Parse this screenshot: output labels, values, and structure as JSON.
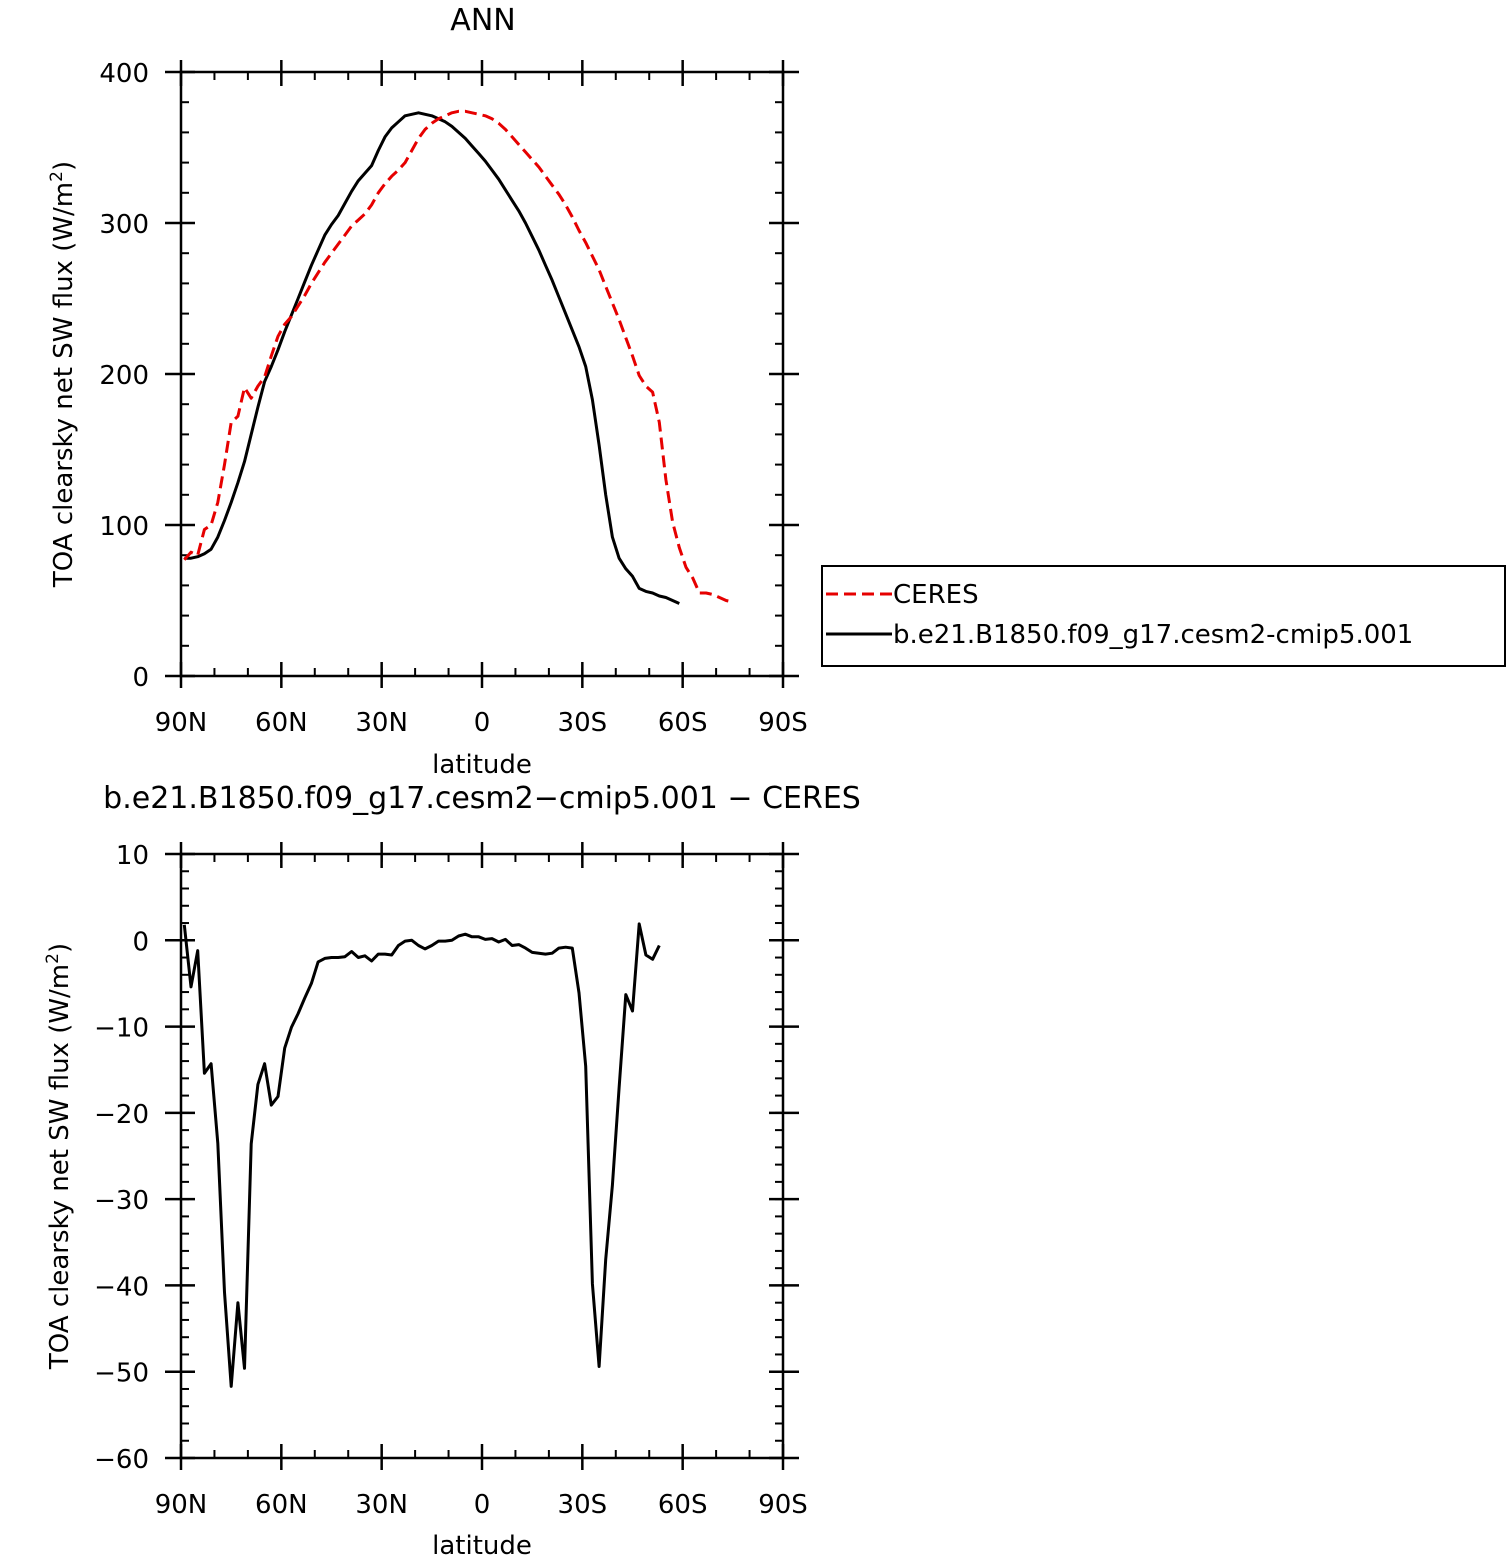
{
  "chart_data": [
    {
      "type": "line",
      "title": "ANN",
      "xlabel": "latitude",
      "ylabel": "TOA clearsky net SW flux (W/m",
      "ylabel_sup": "2",
      "ylabel_close": ")",
      "xlim": [
        90,
        -90
      ],
      "ylim": [
        0,
        400
      ],
      "x_ticks": [
        {
          "value": 90,
          "label": "90N"
        },
        {
          "value": 60,
          "label": "60N"
        },
        {
          "value": 30,
          "label": "30N"
        },
        {
          "value": 0,
          "label": "0"
        },
        {
          "value": -30,
          "label": "30S"
        },
        {
          "value": -60,
          "label": "60S"
        },
        {
          "value": -90,
          "label": "90S"
        }
      ],
      "y_ticks": [
        0,
        100,
        200,
        300,
        400
      ],
      "legend_position": "right",
      "series": [
        {
          "name": "CERES",
          "color": "#e60000",
          "dash": "dashed",
          "points": [
            [
              89,
              77
            ],
            [
              87,
              82
            ],
            [
              85,
              80
            ],
            [
              83,
              97
            ],
            [
              81,
              100
            ],
            [
              79,
              115
            ],
            [
              77,
              140
            ],
            [
              75,
              168
            ],
            [
              73,
              172
            ],
            [
              71,
              191
            ],
            [
              69,
              184
            ],
            [
              67,
              192
            ],
            [
              65,
              198
            ],
            [
              63,
              212
            ],
            [
              61,
              225
            ],
            [
              59,
              233
            ],
            [
              57,
              238
            ],
            [
              55,
              245
            ],
            [
              53,
              252
            ],
            [
              51,
              260
            ],
            [
              49,
              267
            ],
            [
              47,
              274
            ],
            [
              45,
              280
            ],
            [
              43,
              286
            ],
            [
              41,
              292
            ],
            [
              39,
              298
            ],
            [
              37,
              302
            ],
            [
              35,
              306
            ],
            [
              33,
              312
            ],
            [
              31,
              320
            ],
            [
              29,
              326
            ],
            [
              27,
              331
            ],
            [
              25,
              335
            ],
            [
              23,
              340
            ],
            [
              21,
              348
            ],
            [
              19,
              356
            ],
            [
              17,
              362
            ],
            [
              15,
              366
            ],
            [
              13,
              369
            ],
            [
              11,
              371
            ],
            [
              9,
              373
            ],
            [
              7,
              374
            ],
            [
              5,
              374
            ],
            [
              3,
              373
            ],
            [
              1,
              372
            ],
            [
              -1,
              371
            ],
            [
              -3,
              369
            ],
            [
              -5,
              366
            ],
            [
              -7,
              362
            ],
            [
              -9,
              357
            ],
            [
              -11,
              352
            ],
            [
              -13,
              347
            ],
            [
              -15,
              342
            ],
            [
              -17,
              337
            ],
            [
              -19,
              331
            ],
            [
              -21,
              325
            ],
            [
              -23,
              319
            ],
            [
              -25,
              312
            ],
            [
              -27,
              304
            ],
            [
              -29,
              295
            ],
            [
              -31,
              287
            ],
            [
              -33,
              278
            ],
            [
              -35,
              269
            ],
            [
              -37,
              258
            ],
            [
              -39,
              247
            ],
            [
              -41,
              236
            ],
            [
              -43,
              224
            ],
            [
              -45,
              212
            ],
            [
              -47,
              199
            ],
            [
              -49,
              192
            ],
            [
              -51,
              188
            ],
            [
              -53,
              168
            ],
            [
              -55,
              130
            ],
            [
              -57,
              102
            ],
            [
              -59,
              85
            ],
            [
              -61,
              72
            ],
            [
              -63,
              65
            ],
            [
              -65,
              55
            ],
            [
              -67,
              55
            ],
            [
              -69,
              54
            ],
            [
              -71,
              52
            ],
            [
              -73,
              50
            ],
            [
              -75,
              49
            ]
          ]
        },
        {
          "name": "b.e21.B1850.f09_g17.cesm2-cmip5.001",
          "color": "#000000",
          "dash": "solid",
          "points": [
            [
              89,
              78
            ],
            [
              87,
              78
            ],
            [
              85,
              79
            ],
            [
              83,
              81
            ],
            [
              81,
              84
            ],
            [
              79,
              92
            ],
            [
              77,
              103
            ],
            [
              75,
              115
            ],
            [
              73,
              128
            ],
            [
              71,
              142
            ],
            [
              69,
              160
            ],
            [
              67,
              178
            ],
            [
              65,
              195
            ],
            [
              63,
              205
            ],
            [
              61,
              216
            ],
            [
              59,
              228
            ],
            [
              57,
              239
            ],
            [
              55,
              250
            ],
            [
              53,
              261
            ],
            [
              51,
              272
            ],
            [
              49,
              282
            ],
            [
              47,
              292
            ],
            [
              45,
              299
            ],
            [
              43,
              305
            ],
            [
              41,
              313
            ],
            [
              39,
              321
            ],
            [
              37,
              328
            ],
            [
              35,
              333
            ],
            [
              33,
              338
            ],
            [
              31,
              348
            ],
            [
              29,
              357
            ],
            [
              27,
              363
            ],
            [
              25,
              367
            ],
            [
              23,
              371
            ],
            [
              21,
              372
            ],
            [
              19,
              373
            ],
            [
              17,
              372
            ],
            [
              15,
              371
            ],
            [
              13,
              369
            ],
            [
              11,
              367
            ],
            [
              9,
              364
            ],
            [
              7,
              360
            ],
            [
              5,
              356
            ],
            [
              3,
              351
            ],
            [
              1,
              346
            ],
            [
              -1,
              341
            ],
            [
              -3,
              335
            ],
            [
              -5,
              329
            ],
            [
              -7,
              322
            ],
            [
              -9,
              315
            ],
            [
              -11,
              308
            ],
            [
              -13,
              300
            ],
            [
              -15,
              291
            ],
            [
              -17,
              282
            ],
            [
              -19,
              272
            ],
            [
              -21,
              262
            ],
            [
              -23,
              251
            ],
            [
              -25,
              240
            ],
            [
              -27,
              229
            ],
            [
              -29,
              218
            ],
            [
              -31,
              205
            ],
            [
              -33,
              183
            ],
            [
              -35,
              153
            ],
            [
              -37,
              120
            ],
            [
              -39,
              92
            ],
            [
              -41,
              78
            ],
            [
              -43,
              71
            ],
            [
              -45,
              66
            ],
            [
              -47,
              58
            ],
            [
              -49,
              56
            ],
            [
              -51,
              55
            ],
            [
              -53,
              53
            ],
            [
              -55,
              52
            ],
            [
              -57,
              50
            ],
            [
              -59,
              48
            ]
          ]
        }
      ]
    },
    {
      "type": "line",
      "title": "b.e21.B1850.f09_g17.cesm2−cmip5.001  −  CERES",
      "xlabel": "latitude",
      "ylabel": "TOA clearsky net SW flux (W/m",
      "ylabel_sup": "2",
      "ylabel_close": ")",
      "xlim": [
        90,
        -90
      ],
      "ylim": [
        -60,
        10
      ],
      "x_ticks": [
        {
          "value": 90,
          "label": "90N"
        },
        {
          "value": 60,
          "label": "60N"
        },
        {
          "value": 30,
          "label": "30N"
        },
        {
          "value": 0,
          "label": "0"
        },
        {
          "value": -30,
          "label": "30S"
        },
        {
          "value": -60,
          "label": "60S"
        },
        {
          "value": -90,
          "label": "90S"
        }
      ],
      "y_ticks": [
        -60,
        -50,
        -40,
        -30,
        -20,
        -10,
        0,
        10
      ],
      "series": [
        {
          "color": "#000000",
          "dash": "solid",
          "points": [
            [
              89,
              1.8
            ],
            [
              87,
              -5.4
            ],
            [
              85,
              -1.2
            ],
            [
              83,
              -15.4
            ],
            [
              81,
              -14.3
            ],
            [
              79,
              -23.5
            ],
            [
              77,
              -40.8
            ],
            [
              75,
              -51.7
            ],
            [
              73,
              -42.0
            ],
            [
              71,
              -49.6
            ],
            [
              69,
              -23.6
            ],
            [
              67,
              -16.7
            ],
            [
              65,
              -14.3
            ],
            [
              63,
              -19.1
            ],
            [
              61,
              -18.1
            ],
            [
              59,
              -12.5
            ],
            [
              57,
              -10.1
            ],
            [
              55,
              -8.5
            ],
            [
              53,
              -6.7
            ],
            [
              51,
              -5.0
            ],
            [
              49,
              -2.5
            ],
            [
              47,
              -2.1
            ],
            [
              45,
              -2.0
            ],
            [
              43,
              -2.0
            ],
            [
              41,
              -1.9
            ],
            [
              39,
              -1.3
            ],
            [
              37,
              -2.0
            ],
            [
              35,
              -1.8
            ],
            [
              33,
              -2.4
            ],
            [
              31,
              -1.6
            ],
            [
              29,
              -1.6
            ],
            [
              27,
              -1.7
            ],
            [
              25,
              -0.6
            ],
            [
              23,
              -0.1
            ],
            [
              21,
              0.0
            ],
            [
              19,
              -0.6
            ],
            [
              17,
              -1.0
            ],
            [
              15,
              -0.6
            ],
            [
              13,
              -0.1
            ],
            [
              11,
              -0.1
            ],
            [
              9,
              0.0
            ],
            [
              7,
              0.5
            ],
            [
              5,
              0.7
            ],
            [
              3,
              0.4
            ],
            [
              1,
              0.4
            ],
            [
              -1,
              0.1
            ],
            [
              -3,
              0.2
            ],
            [
              -5,
              -0.2
            ],
            [
              -7,
              0.1
            ],
            [
              -9,
              -0.6
            ],
            [
              -11,
              -0.5
            ],
            [
              -13,
              -0.9
            ],
            [
              -15,
              -1.4
            ],
            [
              -17,
              -1.5
            ],
            [
              -19,
              -1.6
            ],
            [
              -21,
              -1.5
            ],
            [
              -23,
              -0.9
            ],
            [
              -25,
              -0.8
            ],
            [
              -27,
              -0.9
            ],
            [
              -29,
              -6.1
            ],
            [
              -31,
              -14.6
            ],
            [
              -33,
              -39.8
            ],
            [
              -35,
              -49.4
            ],
            [
              -37,
              -37.0
            ],
            [
              -39,
              -28.4
            ],
            [
              -41,
              -17.1
            ],
            [
              -43,
              -6.3
            ],
            [
              -45,
              -8.2
            ],
            [
              -47,
              1.9
            ],
            [
              -49,
              -1.7
            ],
            [
              -51,
              -2.2
            ],
            [
              -53,
              -0.6
            ]
          ]
        }
      ]
    }
  ]
}
